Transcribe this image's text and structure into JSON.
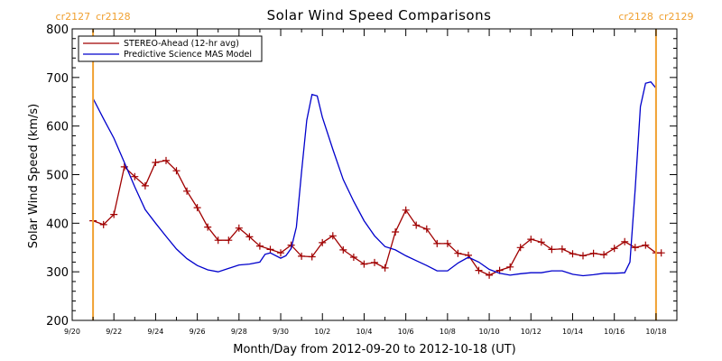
{
  "chart_data": {
    "type": "line",
    "title": "Solar Wind Speed Comparisons",
    "xlabel": "Month/Day from 2012-09-20 to 2012-10-18 (UT)",
    "ylabel": "Solar Wind Speed (km/s)",
    "ylim": [
      200,
      800
    ],
    "y_ticks": [
      200,
      300,
      400,
      500,
      600,
      700,
      800
    ],
    "x_start": "2012-09-20",
    "x_end": "2012-10-18",
    "x_tick_labels": [
      "9/20",
      "9/22",
      "9/24",
      "9/26",
      "9/28",
      "9/30",
      "10/2",
      "10/4",
      "10/6",
      "10/8",
      "10/10",
      "10/12",
      "10/14",
      "10/16",
      "10/18"
    ],
    "legend_position": "top-left",
    "colors": {
      "stereo": "#a00000",
      "mas": "#0000cc",
      "carrington": "#f0a030",
      "axes": "#000000"
    },
    "carrington_markers": [
      {
        "date": "2012-09-21",
        "left_label": "cr2127",
        "right_label": "cr2128"
      },
      {
        "date": "2012-10-18",
        "left_label": "cr2128",
        "right_label": "cr2129"
      }
    ],
    "series": [
      {
        "name": "STEREO-Ahead (12-hr avg)",
        "marker": "plus",
        "points": [
          [
            "2012-09-21 00:00",
            405
          ],
          [
            "2012-09-21 12:00",
            397
          ],
          [
            "2012-09-22 00:00",
            418
          ],
          [
            "2012-09-22 12:00",
            516
          ],
          [
            "2012-09-23 00:00",
            496
          ],
          [
            "2012-09-23 12:00",
            477
          ],
          [
            "2012-09-24 00:00",
            525
          ],
          [
            "2012-09-24 12:00",
            529
          ],
          [
            "2012-09-25 00:00",
            508
          ],
          [
            "2012-09-25 12:00",
            466
          ],
          [
            "2012-09-26 00:00",
            432
          ],
          [
            "2012-09-26 12:00",
            392
          ],
          [
            "2012-09-27 00:00",
            365
          ],
          [
            "2012-09-27 12:00",
            365
          ],
          [
            "2012-09-28 00:00",
            390
          ],
          [
            "2012-09-28 12:00",
            372
          ],
          [
            "2012-09-29 00:00",
            353
          ],
          [
            "2012-09-29 12:00",
            346
          ],
          [
            "2012-09-30 00:00",
            339
          ],
          [
            "2012-09-30 12:00",
            355
          ],
          [
            "2012-10-01 00:00",
            332
          ],
          [
            "2012-10-01 12:00",
            331
          ],
          [
            "2012-10-02 00:00",
            360
          ],
          [
            "2012-10-02 12:00",
            374
          ],
          [
            "2012-10-03 00:00",
            345
          ],
          [
            "2012-10-03 12:00",
            330
          ],
          [
            "2012-10-04 00:00",
            316
          ],
          [
            "2012-10-04 12:00",
            319
          ],
          [
            "2012-10-05 00:00",
            308
          ],
          [
            "2012-10-05 12:00",
            382
          ],
          [
            "2012-10-06 00:00",
            427
          ],
          [
            "2012-10-06 12:00",
            396
          ],
          [
            "2012-10-07 00:00",
            388
          ],
          [
            "2012-10-07 12:00",
            358
          ],
          [
            "2012-10-08 00:00",
            358
          ],
          [
            "2012-10-08 12:00",
            338
          ],
          [
            "2012-10-09 00:00",
            334
          ],
          [
            "2012-10-09 12:00",
            303
          ],
          [
            "2012-10-10 00:00",
            293
          ],
          [
            "2012-10-10 12:00",
            303
          ],
          [
            "2012-10-11 00:00",
            310
          ],
          [
            "2012-10-11 12:00",
            350
          ],
          [
            "2012-10-12 00:00",
            367
          ],
          [
            "2012-10-12 12:00",
            361
          ],
          [
            "2012-10-13 00:00",
            346
          ],
          [
            "2012-10-13 12:00",
            347
          ],
          [
            "2012-10-14 00:00",
            337
          ],
          [
            "2012-10-14 12:00",
            333
          ],
          [
            "2012-10-15 00:00",
            338
          ],
          [
            "2012-10-15 12:00",
            335
          ],
          [
            "2012-10-16 00:00",
            348
          ],
          [
            "2012-10-16 12:00",
            362
          ],
          [
            "2012-10-17 00:00",
            350
          ],
          [
            "2012-10-17 12:00",
            355
          ],
          [
            "2012-10-18 00:00",
            339
          ],
          [
            "2012-10-18 06:00",
            339
          ]
        ]
      },
      {
        "name": "Predictive Science MAS Model",
        "marker": "none",
        "points": [
          [
            "2012-09-21 00:00",
            657
          ],
          [
            "2012-09-21 12:00",
            615
          ],
          [
            "2012-09-22 00:00",
            575
          ],
          [
            "2012-09-22 12:00",
            525
          ],
          [
            "2012-09-23 00:00",
            475
          ],
          [
            "2012-09-23 12:00",
            428
          ],
          [
            "2012-09-24 00:00",
            400
          ],
          [
            "2012-09-24 12:00",
            373
          ],
          [
            "2012-09-25 00:00",
            347
          ],
          [
            "2012-09-25 12:00",
            327
          ],
          [
            "2012-09-26 00:00",
            313
          ],
          [
            "2012-09-26 12:00",
            304
          ],
          [
            "2012-09-27 00:00",
            300
          ],
          [
            "2012-09-27 12:00",
            307
          ],
          [
            "2012-09-28 00:00",
            314
          ],
          [
            "2012-09-28 12:00",
            316
          ],
          [
            "2012-09-29 00:00",
            320
          ],
          [
            "2012-09-29 06:00",
            336
          ],
          [
            "2012-09-29 12:00",
            339
          ],
          [
            "2012-09-30 00:00",
            328
          ],
          [
            "2012-09-30 06:00",
            333
          ],
          [
            "2012-09-30 12:00",
            348
          ],
          [
            "2012-09-30 18:00",
            392
          ],
          [
            "2012-10-01 00:00",
            505
          ],
          [
            "2012-10-01 06:00",
            612
          ],
          [
            "2012-10-01 12:00",
            665
          ],
          [
            "2012-10-01 18:00",
            662
          ],
          [
            "2012-10-02 00:00",
            618
          ],
          [
            "2012-10-02 12:00",
            552
          ],
          [
            "2012-10-03 00:00",
            490
          ],
          [
            "2012-10-03 12:00",
            445
          ],
          [
            "2012-10-04 00:00",
            405
          ],
          [
            "2012-10-04 12:00",
            374
          ],
          [
            "2012-10-05 00:00",
            352
          ],
          [
            "2012-10-05 12:00",
            345
          ],
          [
            "2012-10-06 00:00",
            333
          ],
          [
            "2012-10-06 12:00",
            323
          ],
          [
            "2012-10-07 00:00",
            313
          ],
          [
            "2012-10-07 12:00",
            302
          ],
          [
            "2012-10-08 00:00",
            302
          ],
          [
            "2012-10-08 12:00",
            318
          ],
          [
            "2012-10-09 00:00",
            330
          ],
          [
            "2012-10-09 12:00",
            320
          ],
          [
            "2012-10-10 00:00",
            305
          ],
          [
            "2012-10-10 12:00",
            297
          ],
          [
            "2012-10-11 00:00",
            293
          ],
          [
            "2012-10-11 12:00",
            296
          ],
          [
            "2012-10-12 00:00",
            298
          ],
          [
            "2012-10-12 12:00",
            298
          ],
          [
            "2012-10-13 00:00",
            302
          ],
          [
            "2012-10-13 12:00",
            302
          ],
          [
            "2012-10-14 00:00",
            295
          ],
          [
            "2012-10-14 12:00",
            292
          ],
          [
            "2012-10-15 00:00",
            294
          ],
          [
            "2012-10-15 12:00",
            297
          ],
          [
            "2012-10-16 00:00",
            297
          ],
          [
            "2012-10-16 12:00",
            298
          ],
          [
            "2012-10-16 18:00",
            320
          ],
          [
            "2012-10-17 00:00",
            470
          ],
          [
            "2012-10-17 06:00",
            640
          ],
          [
            "2012-10-17 12:00",
            688
          ],
          [
            "2012-10-17 18:00",
            691
          ],
          [
            "2012-10-18 00:00",
            678
          ]
        ]
      }
    ]
  }
}
